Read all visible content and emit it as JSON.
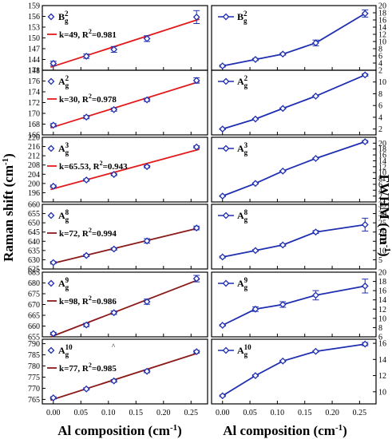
{
  "figure": {
    "left_ylabel": "Raman shift (cm",
    "left_ylabel_sup": "-1",
    "left_ylabel_end": ")",
    "right_ylabel": "FWHM (cm",
    "right_ylabel_sup": "-1",
    "right_ylabel_end": ")",
    "xlabel": "Al composition (cm",
    "xlabel_sup": "-1",
    "xlabel_end": ")",
    "stray_mark": "^",
    "colors": {
      "blue": "#1f2fb0",
      "red": "#e31a1c",
      "brown": "#8b1a1a"
    }
  },
  "chart_data": [
    {
      "type": "scatter",
      "mode": "B",
      "sub": "g",
      "sup": "2",
      "x": [
        0.0,
        0.06,
        0.11,
        0.17,
        0.26
      ],
      "y": [
        142.9,
        144.9,
        146.8,
        149.8,
        155.8
      ],
      "err": [
        0.6,
        0.6,
        0.8,
        0.8,
        1.8
      ],
      "fit": "k=49, R",
      "fit_sup": "2",
      "fit_end": "=0.981",
      "fit_color": "red",
      "ylim": [
        141,
        159
      ],
      "ticks": [
        141,
        144,
        147,
        150,
        153,
        156,
        159
      ],
      "xticks": [
        0.0,
        0.05,
        0.1,
        0.15,
        0.2,
        0.25
      ]
    },
    {
      "type": "scatter",
      "mode": "A",
      "sub": "g",
      "sup": "2",
      "x": [
        0.0,
        0.06,
        0.11,
        0.17,
        0.26
      ],
      "y": [
        167.8,
        169.3,
        170.7,
        172.5,
        176.1
      ],
      "err": [
        0.3,
        0.3,
        0.3,
        0.3,
        0.5
      ],
      "fit": "k=30, R",
      "fit_sup": "2",
      "fit_end": "=0.978",
      "fit_color": "red",
      "ylim": [
        166,
        178
      ],
      "ticks": [
        166,
        168,
        170,
        172,
        174,
        176,
        178
      ],
      "xticks": [
        0.0,
        0.05,
        0.1,
        0.15,
        0.2,
        0.25
      ]
    },
    {
      "type": "scatter",
      "mode": "A",
      "sub": "g",
      "sup": "3",
      "x": [
        0.0,
        0.06,
        0.11,
        0.17,
        0.26
      ],
      "y": [
        198.8,
        201.5,
        203.9,
        207.3,
        215.8
      ],
      "err": [
        0.5,
        0.5,
        0.5,
        0.5,
        0.5
      ],
      "fit": "k=65.53, R",
      "fit_sup": "2",
      "fit_end": "=0.943",
      "fit_color": "red",
      "ylim": [
        192,
        220
      ],
      "ticks": [
        196,
        200,
        204,
        208,
        212,
        216,
        220
      ],
      "xticks": [
        0.0,
        0.05,
        0.1,
        0.15,
        0.2,
        0.25
      ]
    },
    {
      "type": "scatter",
      "mode": "A",
      "sub": "g",
      "sup": "8",
      "x": [
        0.0,
        0.06,
        0.11,
        0.17,
        0.26
      ],
      "y": [
        628.5,
        632.3,
        635.8,
        640.2,
        647.2
      ],
      "err": [
        0.5,
        0.6,
        0.6,
        1.2,
        1.0
      ],
      "fit": "k=72, R",
      "fit_sup": "2",
      "fit_end": "=0.994",
      "fit_color": "brown",
      "ylim": [
        625,
        660
      ],
      "ticks": [
        625,
        630,
        635,
        640,
        645,
        650,
        655,
        660
      ],
      "xticks": [
        0.0,
        0.05,
        0.1,
        0.15,
        0.2,
        0.25
      ]
    },
    {
      "type": "scatter",
      "mode": "A",
      "sub": "g",
      "sup": "9",
      "x": [
        0.0,
        0.06,
        0.11,
        0.17,
        0.26
      ],
      "y": [
        656.5,
        660.5,
        666.2,
        671.3,
        682.0
      ],
      "err": [
        0.6,
        0.8,
        0.8,
        1.2,
        1.5
      ],
      "fit": "k=98, R",
      "fit_sup": "2",
      "fit_end": "=0.986",
      "fit_color": "brown",
      "ylim": [
        655,
        685
      ],
      "ticks": [
        655,
        660,
        665,
        670,
        675,
        680,
        685
      ],
      "xticks": [
        0.0,
        0.05,
        0.1,
        0.15,
        0.2,
        0.25
      ]
    },
    {
      "type": "scatter",
      "mode": "A",
      "sub": "g",
      "sup": "10",
      "x": [
        0.0,
        0.06,
        0.11,
        0.17,
        0.26
      ],
      "y": [
        765.7,
        769.7,
        773.3,
        777.6,
        786.4
      ],
      "err": [
        0.5,
        0.5,
        0.6,
        0.6,
        0.6
      ],
      "fit": "k=77, R",
      "fit_sup": "2",
      "fit_end": "=0.985",
      "fit_color": "brown",
      "ylim": [
        763,
        792
      ],
      "ticks": [
        765,
        770,
        775,
        780,
        785,
        790
      ],
      "xticks": [
        0.0,
        0.05,
        0.1,
        0.15,
        0.2,
        0.25
      ]
    },
    {
      "type": "line",
      "mode": "B",
      "sub": "g",
      "sup": "2",
      "x": [
        0.0,
        0.06,
        0.11,
        0.17,
        0.26
      ],
      "y": [
        3.2,
        5.0,
        6.5,
        9.6,
        17.8
      ],
      "err": [
        0.3,
        0.3,
        0.3,
        0.8,
        1.0
      ],
      "ylim": [
        2,
        20
      ],
      "ticks": [
        2,
        4,
        6,
        8,
        10,
        12,
        14,
        16,
        18,
        20
      ],
      "xticks": [
        0.0,
        0.05,
        0.1,
        0.15,
        0.2,
        0.25
      ]
    },
    {
      "type": "line",
      "mode": "A",
      "sub": "g",
      "sup": "2",
      "x": [
        0.0,
        0.06,
        0.11,
        0.17,
        0.26
      ],
      "y": [
        2.0,
        3.7,
        5.5,
        7.6,
        11.2
      ],
      "err": [
        0.1,
        0.1,
        0.1,
        0.1,
        0.2
      ],
      "ylim": [
        1,
        12
      ],
      "ticks": [
        2,
        4,
        6,
        8,
        10
      ],
      "xticks": [
        0.0,
        0.05,
        0.1,
        0.15,
        0.2,
        0.25
      ]
    },
    {
      "type": "line",
      "mode": "A",
      "sub": "g",
      "sup": "3",
      "x": [
        0.0,
        0.06,
        0.11,
        0.17,
        0.26
      ],
      "y": [
        2.0,
        6.3,
        10.5,
        14.8,
        20.5
      ],
      "err": [
        0.2,
        0.2,
        0.2,
        0.2,
        0.4
      ],
      "ylim": [
        0,
        22
      ],
      "ticks": [
        2,
        4,
        6,
        8,
        10,
        12,
        14,
        16,
        18,
        20
      ],
      "xticks": [
        0.0,
        0.05,
        0.1,
        0.15,
        0.2,
        0.25
      ]
    },
    {
      "type": "line",
      "mode": "A",
      "sub": "g",
      "sup": "8",
      "x": [
        0.0,
        0.06,
        0.11,
        0.17,
        0.26
      ],
      "y": [
        6.5,
        10.0,
        13.0,
        20.0,
        24.0
      ],
      "err": [
        0.5,
        0.5,
        0.6,
        0.8,
        3.5
      ],
      "ylim": [
        0,
        35
      ],
      "ticks": [
        5,
        10,
        15,
        20,
        25,
        30,
        35
      ],
      "xticks": [
        0.0,
        0.05,
        0.1,
        0.15,
        0.2,
        0.25
      ]
    },
    {
      "type": "line",
      "mode": "A",
      "sub": "g",
      "sup": "9",
      "x": [
        0.0,
        0.06,
        0.11,
        0.17,
        0.26
      ],
      "y": [
        8.5,
        12.0,
        13.0,
        15.0,
        17.0
      ],
      "err": [
        0.2,
        0.5,
        0.6,
        1.0,
        1.5
      ],
      "ylim": [
        6,
        20
      ],
      "ticks": [
        6,
        8,
        10,
        12,
        14,
        16,
        18,
        20
      ],
      "xticks": [
        0.0,
        0.05,
        0.1,
        0.15,
        0.2,
        0.25
      ]
    },
    {
      "type": "line",
      "mode": "A",
      "sub": "g",
      "sup": "10",
      "x": [
        0.0,
        0.06,
        0.11,
        0.17,
        0.26
      ],
      "y": [
        9.5,
        12.0,
        13.8,
        15.0,
        15.9
      ],
      "err": [
        0.1,
        0.1,
        0.1,
        0.1,
        0.2
      ],
      "ylim": [
        8.5,
        16.5
      ],
      "ticks": [
        10,
        12,
        14,
        16
      ],
      "xticks": [
        0.0,
        0.05,
        0.1,
        0.15,
        0.2,
        0.25
      ]
    }
  ]
}
